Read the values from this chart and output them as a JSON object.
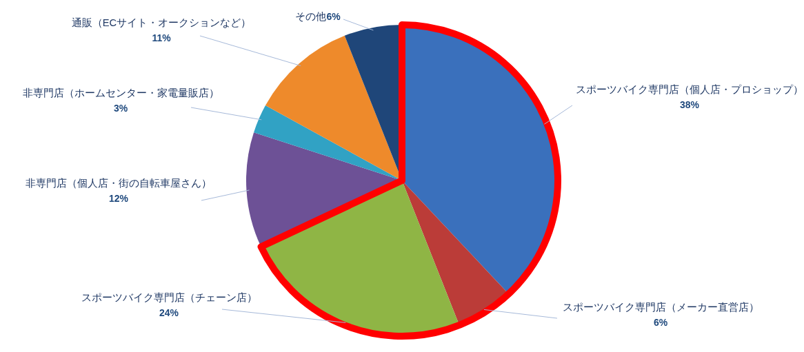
{
  "chart_data": {
    "type": "pie",
    "categories": [
      "スポーツバイク専門店（個人店・プロショップ）",
      "スポーツバイク専門店（メーカー直営店）",
      "スポーツバイク専門店（チェーン店）",
      "非専門店（個人店・街の自転車屋さん）",
      "非専門店（ホームセンター・家電量販店）",
      "通販（ECサイト・オークションなど）",
      "その他"
    ],
    "values": [
      38,
      6,
      24,
      12,
      3,
      11,
      6
    ],
    "colors": [
      "#3a70bc",
      "#bb3c38",
      "#8fb545",
      "#6d5196",
      "#31a2c4",
      "#ee8a2b",
      "#1f4679"
    ],
    "value_labels": [
      "38%",
      "6%",
      "24%",
      "12%",
      "3%",
      "11%",
      "6%"
    ]
  }
}
